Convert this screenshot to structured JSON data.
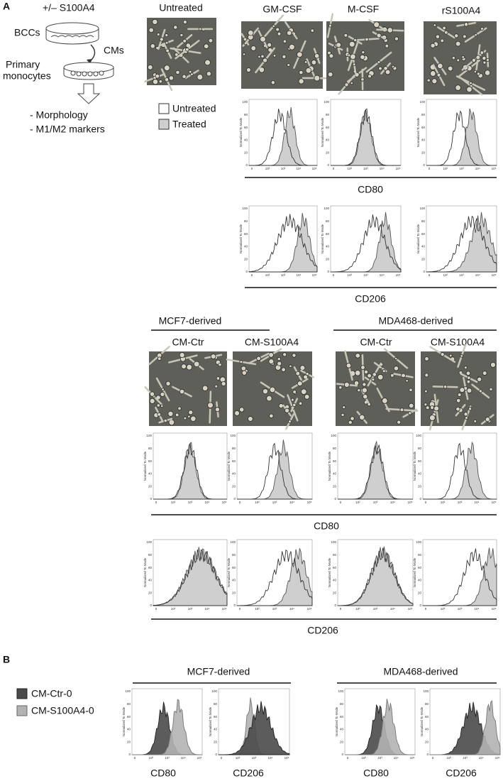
{
  "panel_a": {
    "label": "A",
    "schematic": {
      "treatment": "+/– S100A4",
      "source": "BCCs",
      "medium": "CMs",
      "target_line1": "Primary",
      "target_line2": "monocytes",
      "readout_1": "- Morphology",
      "readout_2": "- M1/M2 markers"
    },
    "conditions": [
      "Untreated",
      "GM-CSF",
      "M-CSF",
      "rS100A4"
    ],
    "legend": [
      "Untreated",
      "Treated"
    ],
    "markers": [
      "CD80",
      "CD206"
    ],
    "groups": [
      {
        "title": "MCF7-derived",
        "conditions": [
          "CM-Ctr",
          "CM-S100A4"
        ]
      },
      {
        "title": "MDA468-derived",
        "conditions": [
          "CM-Ctr",
          "CM-S100A4"
        ]
      }
    ]
  },
  "panel_b": {
    "label": "B",
    "legend": [
      "CM-Ctr-0",
      "CM-S100A4-0"
    ],
    "groups": [
      "MCF7-derived",
      "MDA468-derived"
    ],
    "markers": [
      "CD80",
      "CD206"
    ]
  },
  "histogram_axis": {
    "ylabel": "Normalized To Mode",
    "yticks": [
      "0",
      "20",
      "40",
      "60",
      "80",
      "100"
    ],
    "xticks": [
      "0",
      "10²",
      "10³",
      "10⁴",
      "10⁵"
    ]
  }
}
